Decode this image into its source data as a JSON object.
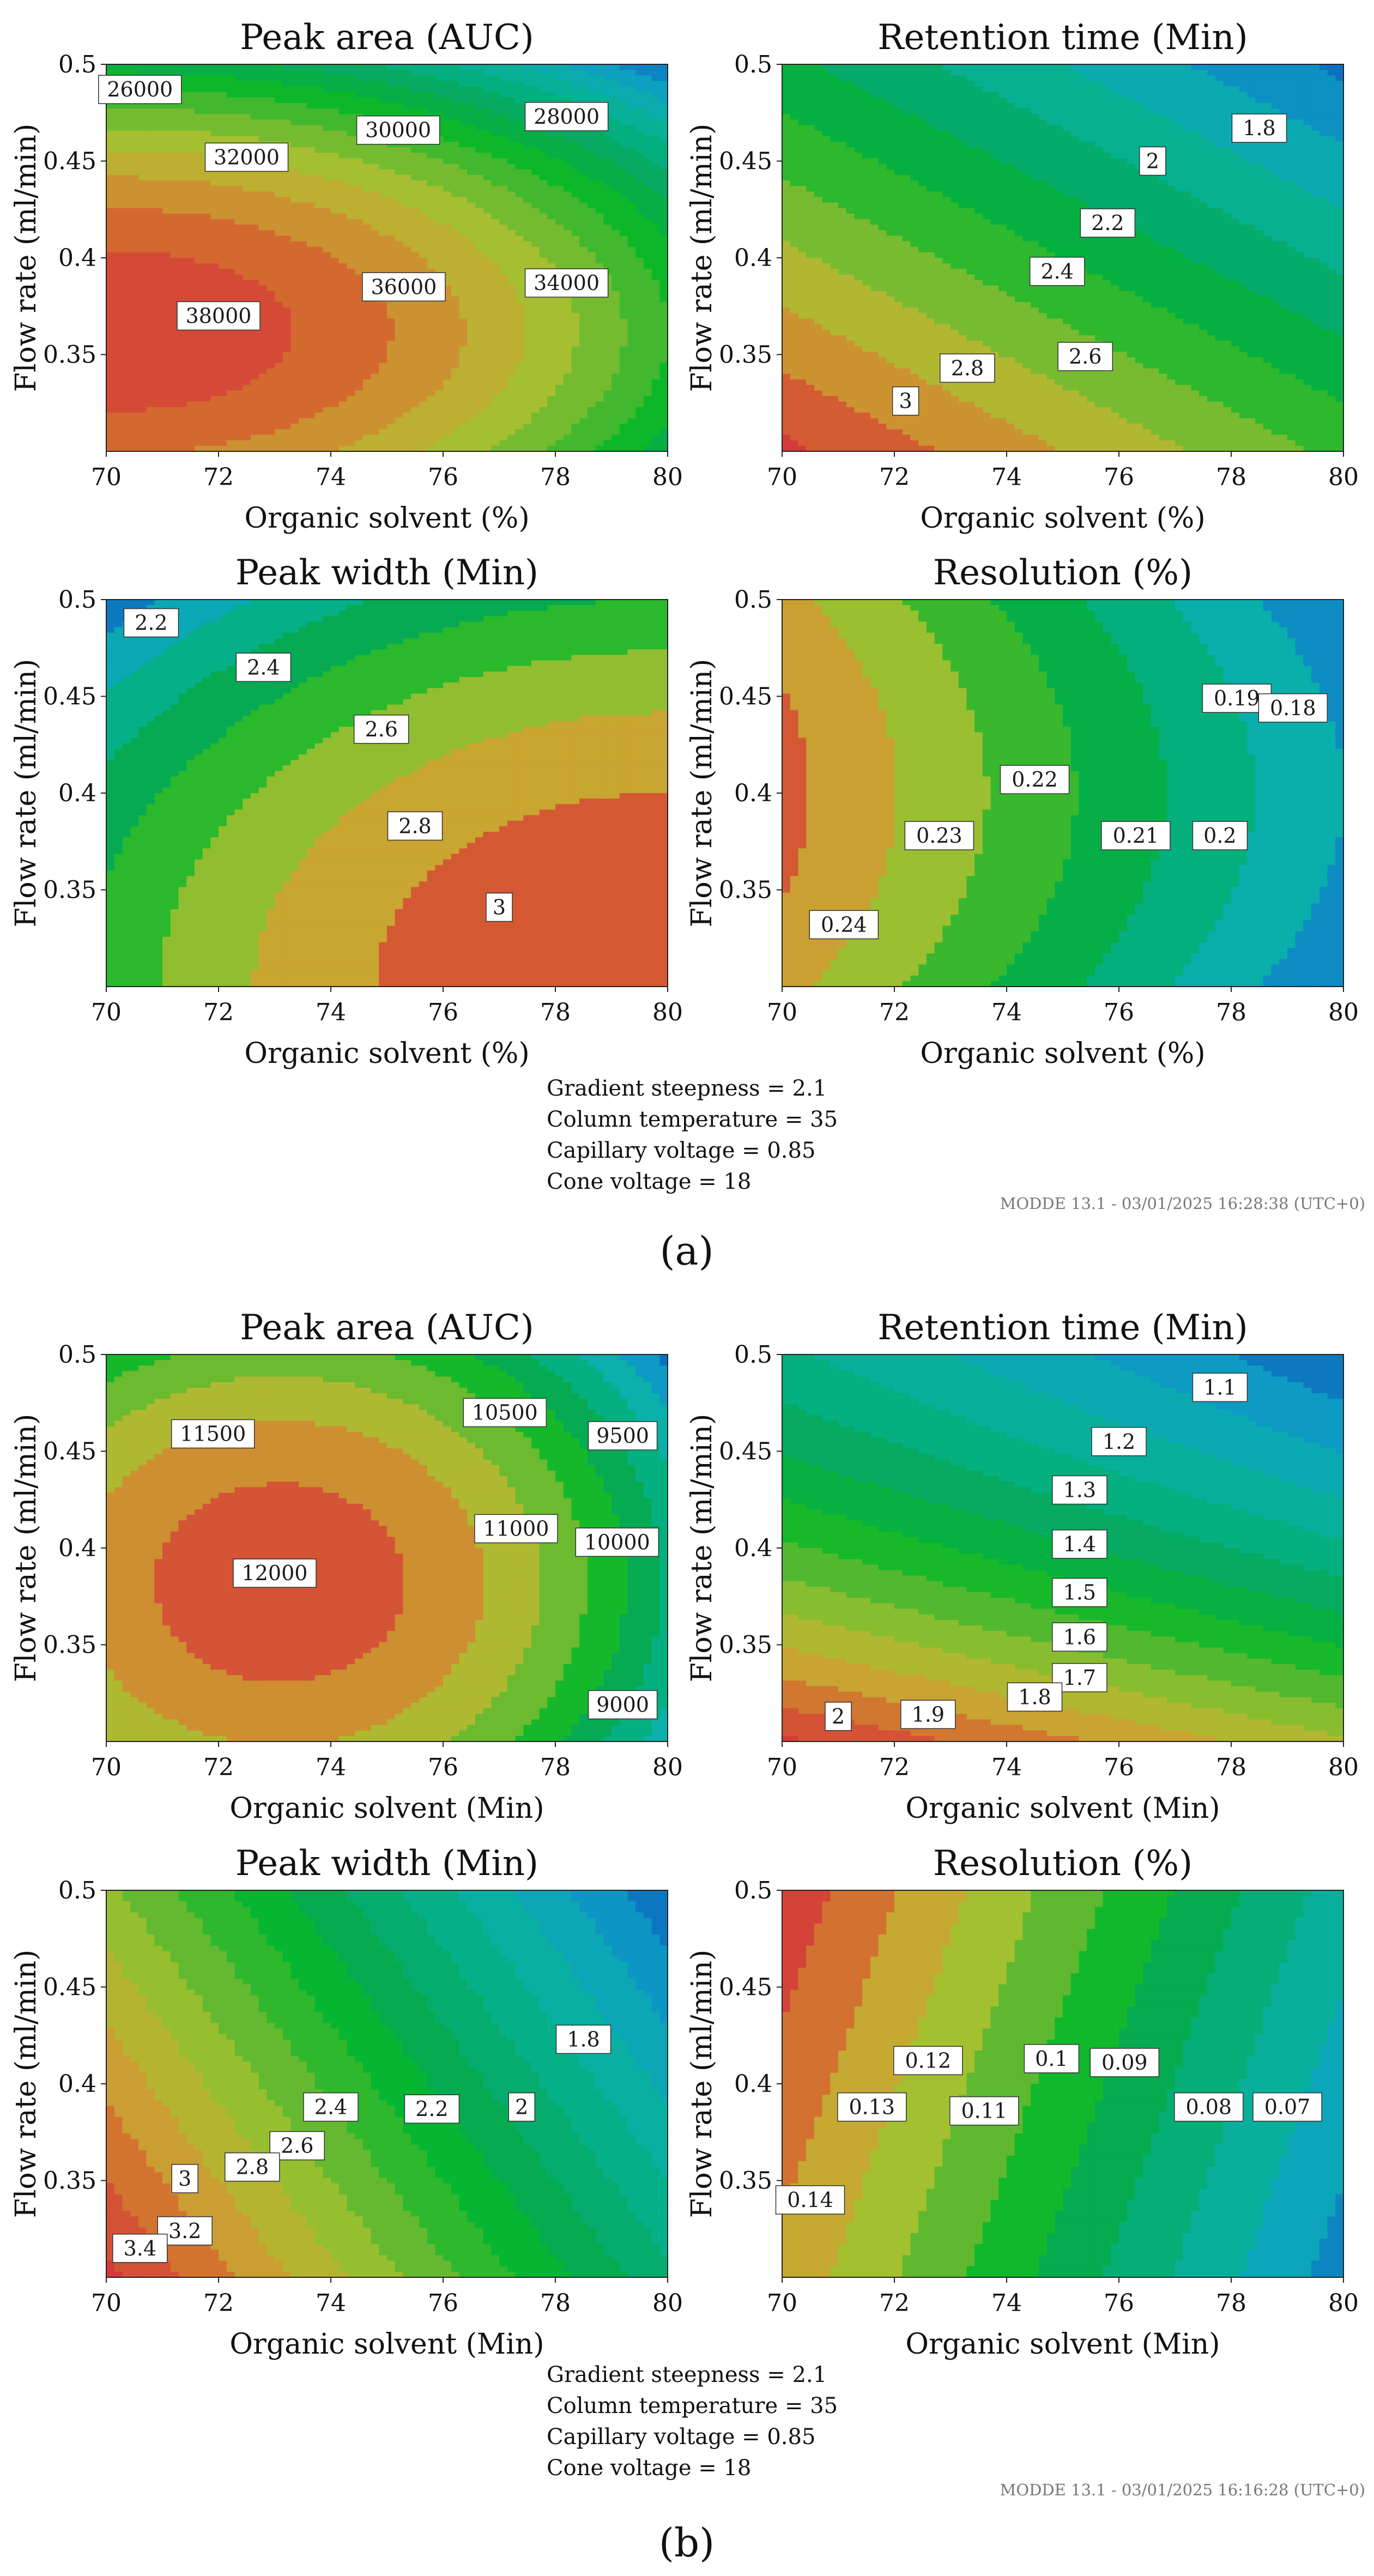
{
  "colors": {
    "palette": [
      "#d43a3a",
      "#d46a30",
      "#c8a832",
      "#a3c030",
      "#58b830",
      "#06b82a",
      "#06a858",
      "#04b083",
      "#0ab0a8",
      "#0d9ec4",
      "#0c6fbf"
    ]
  },
  "chart_data": [
    {
      "panel": "a",
      "conditions": [
        "Gradient steepness = 2.1",
        "Column temperature = 35",
        "Capillary voltage = 0.85",
        "Cone voltage = 18"
      ],
      "stamp": "MODDE 13.1 - 03/01/2025 16:28:38 (UTC+0)",
      "figure_label": "(a)",
      "plots": [
        {
          "type": "contour",
          "title": "Peak area (AUC)",
          "xlabel": "Organic solvent (%)",
          "ylabel": "Flow rate (ml/min)",
          "xlim": [
            70,
            80
          ],
          "ylim": [
            0.3,
            0.5
          ],
          "xticks": [
            "70",
            "72",
            "74",
            "76",
            "78",
            "80"
          ],
          "yticks": [
            "0.35",
            "0.4",
            "0.45",
            "0.5"
          ],
          "model": {
            "kind": "ellipse",
            "x0": 70,
            "y0": 0.362,
            "ax": 10.0,
            "ay": 0.125,
            "origin_value": 39500,
            "edge_value": 26000
          },
          "levels": [
            26000,
            28000,
            30000,
            32000,
            34000,
            36000,
            38000
          ],
          "labels": [
            {
              "text": "26000",
              "x": 70.6,
              "y": 0.487
            },
            {
              "text": "28000",
              "x": 78.2,
              "y": 0.473
            },
            {
              "text": "30000",
              "x": 75.2,
              "y": 0.466
            },
            {
              "text": "32000",
              "x": 72.5,
              "y": 0.452
            },
            {
              "text": "34000",
              "x": 78.2,
              "y": 0.387
            },
            {
              "text": "36000",
              "x": 75.3,
              "y": 0.385
            },
            {
              "text": "38000",
              "x": 72.0,
              "y": 0.37
            }
          ]
        },
        {
          "type": "contour",
          "title": "Retention time (Min)",
          "xlabel": "Organic solvent (%)",
          "ylabel": "Flow rate (ml/min)",
          "xlim": [
            70,
            80
          ],
          "ylim": [
            0.3,
            0.5
          ],
          "xticks": [
            "70",
            "72",
            "74",
            "76",
            "78",
            "80"
          ],
          "yticks": [
            "0.35",
            "0.4",
            "0.45",
            "0.5"
          ],
          "model": {
            "kind": "plane",
            "x0": 70,
            "y0": 0.3,
            "a": 3.25,
            "bx": -0.09,
            "by": -6.0
          },
          "levels": [
            1.8,
            2,
            2.2,
            2.4,
            2.6,
            2.8,
            3
          ],
          "labels": [
            {
              "text": "1.8",
              "x": 78.5,
              "y": 0.467
            },
            {
              "text": "2",
              "x": 76.6,
              "y": 0.45
            },
            {
              "text": "2.2",
              "x": 75.8,
              "y": 0.418
            },
            {
              "text": "2.4",
              "x": 74.9,
              "y": 0.393
            },
            {
              "text": "2.6",
              "x": 75.4,
              "y": 0.349
            },
            {
              "text": "2.8",
              "x": 73.3,
              "y": 0.343
            },
            {
              "text": "3",
              "x": 72.2,
              "y": 0.326
            }
          ]
        },
        {
          "type": "contour",
          "title": "Peak width (Min)",
          "xlabel": "Organic solvent (%)",
          "ylabel": "Flow rate (ml/min)",
          "xlim": [
            70,
            80
          ],
          "ylim": [
            0.3,
            0.5
          ],
          "xticks": [
            "70",
            "72",
            "74",
            "76",
            "78",
            "80"
          ],
          "yticks": [
            "0.35",
            "0.4",
            "0.45",
            "0.5"
          ],
          "model": {
            "kind": "ellipse",
            "x0": 80,
            "y0": 0.3,
            "ax": 12.5,
            "ay": 0.24,
            "origin_value": 3.2,
            "edge_value": 2.05
          },
          "levels": [
            2.2,
            2.4,
            2.6,
            2.8,
            3
          ],
          "labels": [
            {
              "text": "2.2",
              "x": 70.8,
              "y": 0.488
            },
            {
              "text": "2.4",
              "x": 72.8,
              "y": 0.465
            },
            {
              "text": "2.6",
              "x": 74.9,
              "y": 0.433
            },
            {
              "text": "2.8",
              "x": 75.5,
              "y": 0.383
            },
            {
              "text": "3",
              "x": 77.0,
              "y": 0.341
            }
          ]
        },
        {
          "type": "contour",
          "title": "Resolution (%)",
          "xlabel": "Organic solvent (%)",
          "ylabel": "Flow rate (ml/min)",
          "xlim": [
            70,
            80
          ],
          "ylim": [
            0.3,
            0.5
          ],
          "xticks": [
            "70",
            "72",
            "74",
            "76",
            "78",
            "80"
          ],
          "yticks": [
            "0.35",
            "0.4",
            "0.45",
            "0.5"
          ],
          "model": {
            "kind": "curved",
            "x0": 70,
            "y0": 0.4,
            "a": 0.243,
            "bx": -0.0063,
            "c": 150
          },
          "levels": [
            0.18,
            0.19,
            0.2,
            0.21,
            0.22,
            0.23,
            0.24
          ],
          "labels": [
            {
              "text": "0.24",
              "x": 71.1,
              "y": 0.332
            },
            {
              "text": "0.23",
              "x": 72.8,
              "y": 0.378
            },
            {
              "text": "0.22",
              "x": 74.5,
              "y": 0.407
            },
            {
              "text": "0.21",
              "x": 76.3,
              "y": 0.378
            },
            {
              "text": "0.2",
              "x": 77.8,
              "y": 0.378
            },
            {
              "text": "0.19",
              "x": 78.1,
              "y": 0.449
            },
            {
              "text": "0.18",
              "x": 79.1,
              "y": 0.444
            }
          ]
        }
      ]
    },
    {
      "panel": "b",
      "conditions": [
        "Gradient steepness = 2.1",
        "Column temperature = 35",
        "Capillary voltage = 0.85",
        "Cone voltage = 18"
      ],
      "stamp": "MODDE 13.1 - 03/01/2025 16:16:28 (UTC+0)",
      "figure_label": "(b)",
      "plots": [
        {
          "type": "contour",
          "title": "Peak area (AUC)",
          "xlabel": "Organic solvent (Min)",
          "ylabel": "Flow rate (ml/min)",
          "xlim": [
            70,
            80
          ],
          "ylim": [
            0.3,
            0.5
          ],
          "xticks": [
            "70",
            "72",
            "74",
            "76",
            "78",
            "80"
          ],
          "yticks": [
            "0.35",
            "0.4",
            "0.45",
            "0.5"
          ],
          "model": {
            "kind": "ellipse",
            "x0": 73.1,
            "y0": 0.382,
            "ax": 7.6,
            "ay": 0.175,
            "origin_value": 12300,
            "edge_value": 8800
          },
          "levels": [
            9000,
            9500,
            10000,
            10500,
            11000,
            11500,
            12000
          ],
          "labels": [
            {
              "text": "9000",
              "x": 79.2,
              "y": 0.319
            },
            {
              "text": "9500",
              "x": 79.2,
              "y": 0.458
            },
            {
              "text": "10000",
              "x": 79.1,
              "y": 0.403
            },
            {
              "text": "10500",
              "x": 77.1,
              "y": 0.47
            },
            {
              "text": "11000",
              "x": 77.3,
              "y": 0.41
            },
            {
              "text": "11500",
              "x": 71.9,
              "y": 0.459
            },
            {
              "text": "12000",
              "x": 73.0,
              "y": 0.387
            }
          ]
        },
        {
          "type": "contour",
          "title": "Retention time (Min)",
          "xlabel": "Organic solvent (Min)",
          "ylabel": "Flow rate (ml/min)",
          "xlim": [
            70,
            80
          ],
          "ylim": [
            0.3,
            0.5
          ],
          "xticks": [
            "70",
            "72",
            "74",
            "76",
            "78",
            "80"
          ],
          "yticks": [
            "0.35",
            "0.4",
            "0.45",
            "0.5"
          ],
          "model": {
            "kind": "poly",
            "x0": 70,
            "y0": 0.3,
            "a": 2.12,
            "bx": -0.04,
            "by": -7.0,
            "cy": 10.0
          },
          "levels": [
            1.1,
            1.2,
            1.3,
            1.4,
            1.5,
            1.6,
            1.7,
            1.8,
            1.9,
            2
          ],
          "labels": [
            {
              "text": "1.1",
              "x": 77.8,
              "y": 0.483
            },
            {
              "text": "1.2",
              "x": 76.0,
              "y": 0.455
            },
            {
              "text": "1.3",
              "x": 75.3,
              "y": 0.43
            },
            {
              "text": "1.4",
              "x": 75.3,
              "y": 0.402
            },
            {
              "text": "1.5",
              "x": 75.3,
              "y": 0.377
            },
            {
              "text": "1.6",
              "x": 75.3,
              "y": 0.354
            },
            {
              "text": "1.7",
              "x": 75.3,
              "y": 0.333
            },
            {
              "text": "1.8",
              "x": 74.5,
              "y": 0.323
            },
            {
              "text": "1.9",
              "x": 72.6,
              "y": 0.314
            },
            {
              "text": "2",
              "x": 71.0,
              "y": 0.313
            }
          ]
        },
        {
          "type": "contour",
          "title": "Peak width (Min)",
          "xlabel": "Organic solvent (Min)",
          "ylabel": "Flow rate (ml/min)",
          "xlim": [
            70,
            80
          ],
          "ylim": [
            0.3,
            0.5
          ],
          "xticks": [
            "70",
            "72",
            "74",
            "76",
            "78",
            "80"
          ],
          "yticks": [
            "0.35",
            "0.4",
            "0.45",
            "0.5"
          ],
          "model": {
            "kind": "plane",
            "x0": 70,
            "y0": 0.3,
            "a": 3.65,
            "bx": -0.2,
            "by": -5.0
          },
          "levels": [
            1.8,
            2,
            2.2,
            2.4,
            2.6,
            2.8,
            3,
            3.2,
            3.4
          ],
          "labels": [
            {
              "text": "1.8",
              "x": 78.5,
              "y": 0.423
            },
            {
              "text": "2",
              "x": 77.4,
              "y": 0.388
            },
            {
              "text": "2.2",
              "x": 75.8,
              "y": 0.387
            },
            {
              "text": "2.4",
              "x": 74.0,
              "y": 0.388
            },
            {
              "text": "2.6",
              "x": 73.4,
              "y": 0.368
            },
            {
              "text": "2.8",
              "x": 72.6,
              "y": 0.357
            },
            {
              "text": "3",
              "x": 71.4,
              "y": 0.351
            },
            {
              "text": "3.2",
              "x": 71.4,
              "y": 0.324
            },
            {
              "text": "3.4",
              "x": 70.6,
              "y": 0.315
            }
          ]
        },
        {
          "type": "contour",
          "title": "Resolution (%)",
          "xlabel": "Organic solvent (Min)",
          "ylabel": "Flow rate (ml/min)",
          "xlim": [
            70,
            80
          ],
          "ylim": [
            0.3,
            0.5
          ],
          "xticks": [
            "70",
            "72",
            "74",
            "76",
            "78",
            "80"
          ],
          "yticks": [
            "0.35",
            "0.4",
            "0.45",
            "0.5"
          ],
          "model": {
            "kind": "plane",
            "x0": 70,
            "y0": 0.3,
            "a": 0.147,
            "bx": -0.0082,
            "by": 0.1
          },
          "levels": [
            0.07,
            0.08,
            0.09,
            0.1,
            0.11,
            0.12,
            0.13,
            0.14
          ],
          "labels": [
            {
              "text": "0.14",
              "x": 70.5,
              "y": 0.34
            },
            {
              "text": "0.13",
              "x": 71.6,
              "y": 0.388
            },
            {
              "text": "0.12",
              "x": 72.6,
              "y": 0.412
            },
            {
              "text": "0.11",
              "x": 73.6,
              "y": 0.386
            },
            {
              "text": "0.1",
              "x": 74.8,
              "y": 0.413
            },
            {
              "text": "0.09",
              "x": 76.1,
              "y": 0.411
            },
            {
              "text": "0.08",
              "x": 77.6,
              "y": 0.388
            },
            {
              "text": "0.07",
              "x": 79.0,
              "y": 0.388
            }
          ]
        }
      ]
    }
  ]
}
